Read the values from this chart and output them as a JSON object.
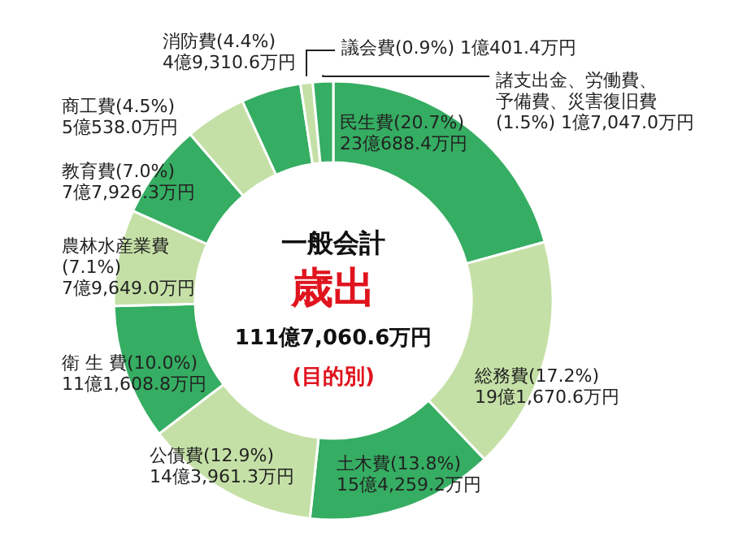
{
  "chart_data": {
    "type": "donut",
    "categories": [
      "民生費(20.7%)\n23億688.4万円",
      "総務費(17.2%)\n19億1,670.6万円",
      "土木費(13.8%)\n15億4,259.2万円",
      "公債費(12.9%)\n14億3,961.3万円",
      "衛 生 費(10.0%)\n11億1,608.8万円",
      "農林水産業費\n(7.1%)\n7億9,649.0万円",
      "教育費(7.0%)\n7億7,926.3万円",
      "商工費(4.5%)\n5億538.0万円",
      "消防費(4.4%)\n4億9,310.6万円",
      "議会費(0.9%) 1億401.4万円",
      "諸支出金、労働費、予備費、災害復旧費\n(1.5%) 1億7,047.0万円"
    ],
    "values": [
      20.7,
      17.2,
      13.8,
      12.9,
      10.0,
      7.1,
      7.0,
      4.5,
      4.4,
      0.9,
      1.5
    ],
    "colors": [
      "#35ad62",
      "#c5e0a6",
      "#35ad62",
      "#c5e0a6",
      "#35ad62",
      "#c5e0a6",
      "#35ad62",
      "#c5e0a6",
      "#35ad62",
      "#c5e0a6",
      "#35ad62"
    ],
    "annotations": [
      "一般会計",
      "歳出",
      "111億7,060.6万円",
      "(目的別)"
    ]
  }
}
